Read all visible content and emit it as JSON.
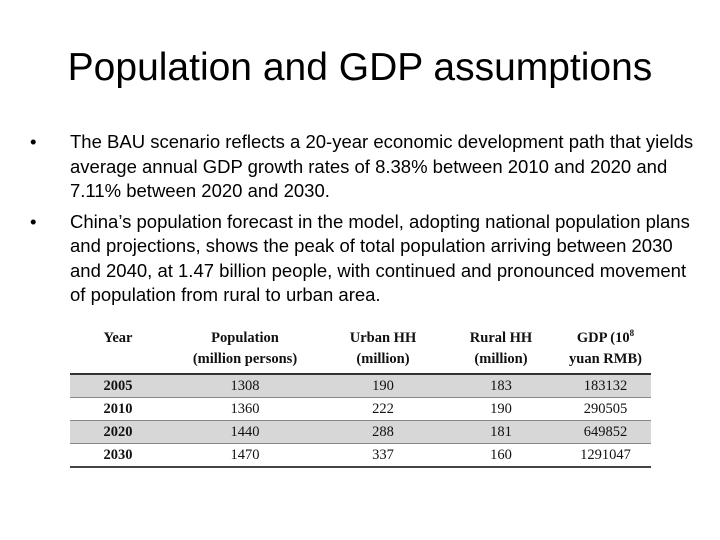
{
  "title": "Population and GDP assumptions",
  "bullets": [
    "The BAU scenario reflects a 20-year economic development path that yields average annual GDP growth rates of 8.38% between 2010 and 2020 and 7.11% between 2020 and 2030.",
    "China’s population forecast in the model, adopting national population plans and projections, shows the peak of total population arriving between 2030 and 2040, at 1.47 billion people, with continued and pronounced movement of population from rural to urban area."
  ],
  "bullet_symbol": "•",
  "table": {
    "headers": {
      "year": "Year",
      "population": {
        "line1": "Population",
        "line2": "(million persons)"
      },
      "urban": {
        "line1": "Urban HH",
        "line2": "(million)"
      },
      "rural": {
        "line1": "Rural HH",
        "line2": "(million)"
      },
      "gdp": {
        "line1": "GDP (10",
        "sup": "8",
        "line2": "yuan RMB)"
      }
    },
    "rows": [
      {
        "year": "2005",
        "population": "1308",
        "urban": "190",
        "rural": "183",
        "gdp": "183132"
      },
      {
        "year": "2010",
        "population": "1360",
        "urban": "222",
        "rural": "190",
        "gdp": "290505"
      },
      {
        "year": "2020",
        "population": "1440",
        "urban": "288",
        "rural": "181",
        "gdp": "649852"
      },
      {
        "year": "2030",
        "population": "1470",
        "urban": "337",
        "rural": "160",
        "gdp": "1291047"
      }
    ],
    "shaded_row_color": "#d7d7d7"
  }
}
